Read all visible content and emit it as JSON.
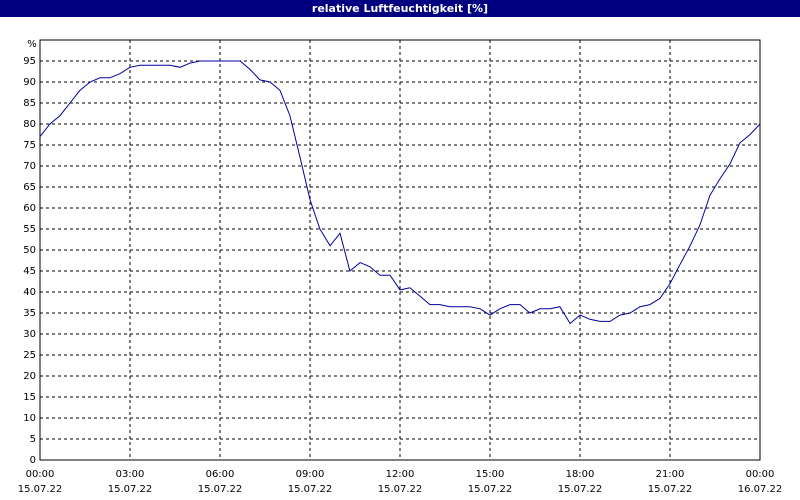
{
  "chart_data": {
    "type": "line",
    "title": "relative Luftfeuchtigkeit [%]",
    "y_label": "%",
    "xlim": [
      0,
      24
    ],
    "xticks": [
      {
        "value": 0,
        "label": "00:00",
        "date": "15.07.22"
      },
      {
        "value": 3,
        "label": "03:00",
        "date": "15.07.22"
      },
      {
        "value": 6,
        "label": "06:00",
        "date": "15.07.22"
      },
      {
        "value": 9,
        "label": "09:00",
        "date": "15.07.22"
      },
      {
        "value": 12,
        "label": "12:00",
        "date": "15.07.22"
      },
      {
        "value": 15,
        "label": "15:00",
        "date": "15.07.22"
      },
      {
        "value": 18,
        "label": "18:00",
        "date": "15.07.22"
      },
      {
        "value": 21,
        "label": "21:00",
        "date": "15.07.22"
      },
      {
        "value": 24,
        "label": "00:00",
        "date": "16.07.22"
      }
    ],
    "ylim": [
      0,
      100
    ],
    "yticks": [
      0,
      5,
      10,
      15,
      20,
      25,
      30,
      35,
      40,
      45,
      50,
      55,
      60,
      65,
      70,
      75,
      80,
      85,
      90,
      95
    ],
    "grid": true,
    "series": [
      {
        "color": "#0000a0",
        "x": [
          0,
          0.33,
          0.67,
          1,
          1.33,
          1.67,
          2,
          2.33,
          2.67,
          3,
          3.33,
          3.67,
          4,
          4.33,
          4.67,
          5,
          5.33,
          5.67,
          6,
          6.33,
          6.67,
          7,
          7.33,
          7.67,
          8,
          8.33,
          8.67,
          9,
          9.33,
          9.67,
          10,
          10.33,
          10.67,
          11,
          11.33,
          11.67,
          12,
          12.33,
          12.67,
          13,
          13.33,
          13.67,
          14,
          14.33,
          14.67,
          15,
          15.33,
          15.67,
          16,
          16.33,
          16.67,
          17,
          17.33,
          17.67,
          18,
          18.33,
          18.67,
          19,
          19.33,
          19.67,
          20,
          20.33,
          20.67,
          21,
          21.33,
          21.67,
          22,
          22.33,
          22.67,
          23,
          23.33,
          23.67,
          24
        ],
        "values": [
          77,
          80,
          82,
          85,
          88,
          90,
          91,
          91,
          92,
          93.5,
          94,
          94,
          94,
          94,
          93.5,
          94.5,
          95,
          95,
          95,
          95,
          95,
          93,
          90.5,
          90,
          88,
          82,
          72,
          62,
          55,
          51,
          54,
          45,
          47,
          46,
          44,
          44,
          40.5,
          41,
          39,
          37,
          37,
          36.5,
          36.5,
          36.5,
          36,
          34.5,
          36,
          37,
          37,
          35,
          36,
          36,
          36.5,
          32.5,
          34.5,
          33.5,
          33,
          33,
          34.5,
          35,
          36.5,
          37,
          38.5,
          42,
          46.5,
          51,
          56,
          63,
          67,
          70.5,
          75.5,
          77.5,
          80
        ]
      }
    ]
  }
}
